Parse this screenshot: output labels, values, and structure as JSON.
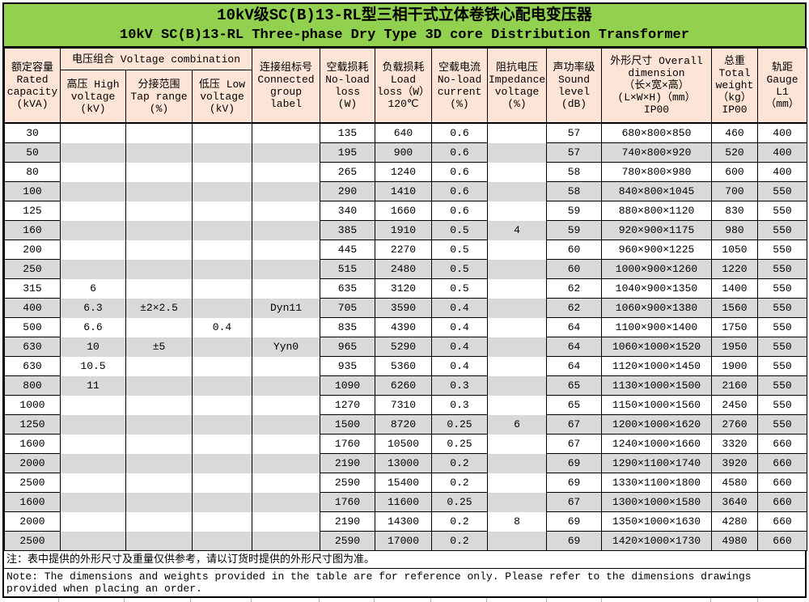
{
  "title": {
    "zh": "10kV级SC(B)13-RL型三相干式立体卷铁心配电变压器",
    "en": "10kV SC(B)13-RL Three-phase Dry Type 3D core Distribution Transformer"
  },
  "colors": {
    "title_bg": "#92D050",
    "header_bg": "#FCE4D6",
    "stripe_bg": "#D9D9D9",
    "border": "#000000"
  },
  "headers": {
    "rated_capacity": "额定容量\nRated\ncapacity\n(kVA)",
    "voltage_combination": "电压组合 Voltage combination",
    "high_voltage": "高压 High\nvoltage\n(kV)",
    "tap_range": "分接范围\nTap range\n(%)",
    "low_voltage": "低压 Low\nvoltage\n(kV)",
    "connected_group": "连接组标号\nConnected\ngroup\nlabel",
    "no_load_loss": "空载损耗\nNo-load\nloss\n(W)",
    "load_loss": "负载损耗\nLoad\nloss（W）\n120℃",
    "no_load_current": "空载电流\nNo-load\ncurrent\n(%)",
    "impedance_voltage": "阻抗电压\nImpedance\nvoltage\n(%)",
    "sound_level": "声功率级\nSound\nlevel\n(dB)",
    "overall_dimension": "外形尺寸 Overall\ndimension\n（长×宽×高）\n(L×W×H)（mm）\nIP00",
    "total_weight": "总重\nTotal\nweight\n（kg）\nIP00",
    "gauge": "轨距\nGauge\nL1\n（mm）"
  },
  "table": {
    "rows": [
      [
        "30",
        "",
        "",
        "",
        "",
        "135",
        "640",
        "0.6",
        "",
        "57",
        "680×800×850",
        "460",
        "400"
      ],
      [
        "50",
        "",
        "",
        "",
        "",
        "195",
        "900",
        "0.6",
        "",
        "57",
        "740×800×920",
        "520",
        "400"
      ],
      [
        "80",
        "",
        "",
        "",
        "",
        "265",
        "1240",
        "0.6",
        "",
        "58",
        "780×800×980",
        "600",
        "400"
      ],
      [
        "100",
        "",
        "",
        "",
        "",
        "290",
        "1410",
        "0.6",
        "",
        "58",
        "840×800×1045",
        "700",
        "550"
      ],
      [
        "125",
        "",
        "",
        "",
        "",
        "340",
        "1660",
        "0.6",
        "",
        "59",
        "880×800×1120",
        "830",
        "550"
      ],
      [
        "160",
        "",
        "",
        "",
        "",
        "385",
        "1910",
        "0.5",
        "4",
        "59",
        "920×900×1175",
        "980",
        "550"
      ],
      [
        "200",
        "",
        "",
        "",
        "",
        "445",
        "2270",
        "0.5",
        "",
        "60",
        "960×900×1225",
        "1050",
        "550"
      ],
      [
        "250",
        "",
        "",
        "",
        "",
        "515",
        "2480",
        "0.5",
        "",
        "60",
        "1000×900×1260",
        "1220",
        "550"
      ],
      [
        "315",
        "6",
        "",
        "",
        "",
        "635",
        "3120",
        "0.5",
        "",
        "62",
        "1040×900×1350",
        "1400",
        "550"
      ],
      [
        "400",
        "6.3",
        "±2×2.5",
        "",
        "Dyn11",
        "705",
        "3590",
        "0.4",
        "",
        "62",
        "1060×900×1380",
        "1560",
        "550"
      ],
      [
        "500",
        "6.6",
        "",
        "0.4",
        "",
        "835",
        "4390",
        "0.4",
        "",
        "64",
        "1100×900×1400",
        "1750",
        "550"
      ],
      [
        "630",
        "10",
        "±5",
        "",
        "Yyn0",
        "965",
        "5290",
        "0.4",
        "",
        "64",
        "1060×1000×1520",
        "1950",
        "550"
      ],
      [
        "630",
        "10.5",
        "",
        "",
        "",
        "935",
        "5360",
        "0.4",
        "",
        "64",
        "1120×1000×1450",
        "1900",
        "550"
      ],
      [
        "800",
        "11",
        "",
        "",
        "",
        "1090",
        "6260",
        "0.3",
        "",
        "65",
        "1130×1000×1500",
        "2160",
        "550"
      ],
      [
        "1000",
        "",
        "",
        "",
        "",
        "1270",
        "7310",
        "0.3",
        "",
        "65",
        "1150×1000×1560",
        "2450",
        "550"
      ],
      [
        "1250",
        "",
        "",
        "",
        "",
        "1500",
        "8720",
        "0.25",
        "6",
        "67",
        "1200×1000×1620",
        "2760",
        "550"
      ],
      [
        "1600",
        "",
        "",
        "",
        "",
        "1760",
        "10500",
        "0.25",
        "",
        "67",
        "1240×1000×1660",
        "3320",
        "660"
      ],
      [
        "2000",
        "",
        "",
        "",
        "",
        "2190",
        "13000",
        "0.2",
        "",
        "69",
        "1290×1100×1740",
        "3920",
        "660"
      ],
      [
        "2500",
        "",
        "",
        "",
        "",
        "2590",
        "15400",
        "0.2",
        "",
        "69",
        "1330×1100×1800",
        "4580",
        "660"
      ],
      [
        "1600",
        "",
        "",
        "",
        "",
        "1760",
        "11600",
        "0.25",
        "",
        "67",
        "1300×1000×1580",
        "3640",
        "660"
      ],
      [
        "2000",
        "",
        "",
        "",
        "",
        "2190",
        "14300",
        "0.2",
        "8",
        "69",
        "1350×1000×1630",
        "4280",
        "660"
      ],
      [
        "2500",
        "",
        "",
        "",
        "",
        "2590",
        "17000",
        "0.2",
        "",
        "69",
        "1420×1000×1730",
        "4980",
        "660"
      ]
    ]
  },
  "notes": {
    "zh": "注：表中提供的外形尺寸及重量仅供参考，请以订货时提供的外形尺寸图为准。",
    "en": "Note: The dimensions and weights provided in the table are for reference only. Please refer to the dimensions drawings provided when placing an order."
  }
}
